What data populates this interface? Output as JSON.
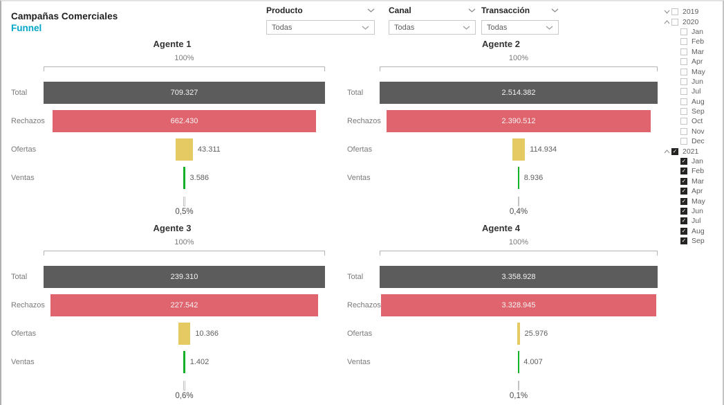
{
  "header": {
    "title": "Campañas Comerciales",
    "subtitle": "Funnel",
    "subtitle_color": "#00A6C7"
  },
  "filters": [
    {
      "label": "Producto",
      "value": "Todas"
    },
    {
      "label": "Canal",
      "value": "Todas"
    },
    {
      "label": "Transacción",
      "value": "Todas"
    }
  ],
  "date_slicer": {
    "years": [
      {
        "label": "2019",
        "expanded": false,
        "checked": false,
        "months": []
      },
      {
        "label": "2020",
        "expanded": true,
        "checked": false,
        "months": [
          {
            "label": "Jan",
            "checked": false
          },
          {
            "label": "Feb",
            "checked": false
          },
          {
            "label": "Mar",
            "checked": false
          },
          {
            "label": "Apr",
            "checked": false
          },
          {
            "label": "May",
            "checked": false
          },
          {
            "label": "Jun",
            "checked": false
          },
          {
            "label": "Jul",
            "checked": false
          },
          {
            "label": "Aug",
            "checked": false
          },
          {
            "label": "Sep",
            "checked": false
          },
          {
            "label": "Oct",
            "checked": false
          },
          {
            "label": "Nov",
            "checked": false
          },
          {
            "label": "Dec",
            "checked": false
          }
        ]
      },
      {
        "label": "2021",
        "expanded": true,
        "checked": true,
        "months": [
          {
            "label": "Jan",
            "checked": true
          },
          {
            "label": "Feb",
            "checked": true
          },
          {
            "label": "Mar",
            "checked": true
          },
          {
            "label": "Apr",
            "checked": true
          },
          {
            "label": "May",
            "checked": true
          },
          {
            "label": "Jun",
            "checked": true
          },
          {
            "label": "Jul",
            "checked": true
          },
          {
            "label": "Aug",
            "checked": true
          },
          {
            "label": "Sep",
            "checked": true
          }
        ]
      }
    ]
  },
  "chart_data": [
    {
      "type": "funnel",
      "title": "Agente 1",
      "top_label": "100%",
      "categories": [
        "Total",
        "Rechazos",
        "Ofertas",
        "Ventas"
      ],
      "values": [
        709327,
        662430,
        43311,
        3586
      ],
      "value_labels": [
        "709.327",
        "662.430",
        "43.311",
        "3.586"
      ],
      "conversion_label": "0,5%"
    },
    {
      "type": "funnel",
      "title": "Agente 2",
      "top_label": "100%",
      "categories": [
        "Total",
        "Rechazos",
        "Ofertas",
        "Ventas"
      ],
      "values": [
        2514382,
        2390512,
        114934,
        8936
      ],
      "value_labels": [
        "2.514.382",
        "2.390.512",
        "114.934",
        "8.936"
      ],
      "conversion_label": "0,4%"
    },
    {
      "type": "funnel",
      "title": "Agente 3",
      "top_label": "100%",
      "categories": [
        "Total",
        "Rechazos",
        "Ofertas",
        "Ventas"
      ],
      "values": [
        239310,
        227542,
        10366,
        1402
      ],
      "value_labels": [
        "239.310",
        "227.542",
        "10.366",
        "1.402"
      ],
      "conversion_label": "0,6%"
    },
    {
      "type": "funnel",
      "title": "Agente 4",
      "top_label": "100%",
      "categories": [
        "Total",
        "Rechazos",
        "Ofertas",
        "Ventas"
      ],
      "values": [
        3358928,
        3328945,
        25976,
        4007
      ],
      "value_labels": [
        "3.358.928",
        "3.328.945",
        "25.976",
        "4.007"
      ],
      "conversion_label": "0,1%"
    }
  ],
  "colors": {
    "bar_total": "#5C5C5C",
    "bar_rechazos": "#E0646E",
    "bar_ofertas": "#E5C963",
    "bar_ventas": "#14B028"
  }
}
